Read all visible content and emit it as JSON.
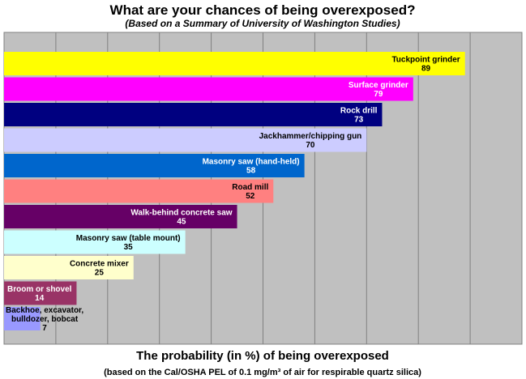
{
  "chart_data": {
    "type": "hbar",
    "title": "What are your chances of being overexposed?",
    "subtitle": "(Based on a Summary of University of Washington Studies)",
    "x_label": "The probability (in %) of being overexposed",
    "note": "(based on the Cal/OSHA PEL of 0.1 mg/m³ of air for respirable quartz silica)",
    "categories": [
      "Tuckpoint grinder",
      "Surface grinder",
      "Rock drill",
      "Jackhammer/chipping gun",
      "Masonry saw (hand-held)",
      "Road mill",
      "Walk-behind concrete saw",
      "Masonry saw (table mount)",
      "Concrete mixer",
      "Broom or shovel",
      "Backhoe, excavator, bulldozer, bobcat"
    ],
    "values": [
      89,
      79,
      73,
      70,
      58,
      52,
      45,
      35,
      25,
      14,
      7
    ],
    "colors": [
      "#ffff00",
      "#ff00ff",
      "#000080",
      "#ccccff",
      "#0066cc",
      "#ff8080",
      "#660066",
      "#ccffff",
      "#ffffcc",
      "#993366",
      "#9999ff"
    ],
    "xlim": [
      0,
      100
    ],
    "xticks": [
      0,
      10,
      20,
      30,
      40,
      50,
      60,
      70,
      80,
      90,
      100
    ],
    "grid": true
  }
}
